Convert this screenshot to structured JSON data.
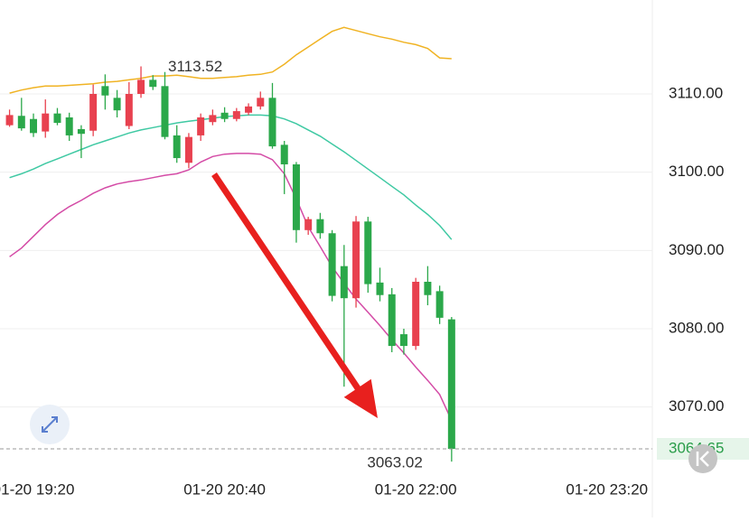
{
  "chart_data": {
    "type": "candlestick",
    "x": [
      "01-20 19:10",
      "01-20 19:15",
      "01-20 19:20",
      "01-20 19:25",
      "01-20 19:30",
      "01-20 19:35",
      "01-20 19:40",
      "01-20 19:45",
      "01-20 19:50",
      "01-20 19:55",
      "01-20 20:00",
      "01-20 20:05",
      "01-20 20:10",
      "01-20 20:15",
      "01-20 20:20",
      "01-20 20:25",
      "01-20 20:30",
      "01-20 20:35",
      "01-20 20:40",
      "01-20 20:45",
      "01-20 20:50",
      "01-20 20:55",
      "01-20 21:00",
      "01-20 21:05",
      "01-20 21:10",
      "01-20 21:15",
      "01-20 21:20",
      "01-20 21:25",
      "01-20 21:30",
      "01-20 21:35",
      "01-20 21:40",
      "01-20 21:45",
      "01-20 21:50",
      "01-20 21:55",
      "01-20 22:00",
      "01-20 22:05",
      "01-20 22:10",
      "01-20 22:15"
    ],
    "open": [
      3106,
      3107.2,
      3106.8,
      3105.2,
      3107.5,
      3107,
      3105.5,
      3105.3,
      3111,
      3109.5,
      3105.9,
      3110,
      3111.8,
      3111,
      3104.7,
      3101.2,
      3104.7,
      3106.4,
      3107.6,
      3106.8,
      3107.6,
      3108.4,
      3109.5,
      3103.5,
      3101,
      3092.6,
      3094,
      3092.2,
      3088,
      3083.9,
      3093.7,
      3085.9,
      3084.4,
      3079.3,
      3077.8,
      3086,
      3084.8,
      3081.2
    ],
    "high": [
      3108,
      3109.5,
      3107.5,
      3109.3,
      3108.2,
      3107.6,
      3106,
      3111.2,
      3112.5,
      3110.5,
      3111.5,
      3113.52,
      3112.4,
      3112.8,
      3106,
      3105,
      3107.5,
      3108,
      3108.3,
      3108.2,
      3108.8,
      3110.3,
      3111.4,
      3104,
      3101.3,
      3094.3,
      3094.8,
      3092.6,
      3090.7,
      3094.4,
      3094.3,
      3087.8,
      3085.2,
      3080,
      3086.5,
      3088,
      3085.5,
      3081.5
    ],
    "low": [
      3105.8,
      3105.3,
      3104.5,
      3104.4,
      3106,
      3104,
      3101.8,
      3104.6,
      3108,
      3107,
      3105.5,
      3109.5,
      3110.5,
      3104.2,
      3101.2,
      3100.5,
      3104,
      3106,
      3106.4,
      3106.5,
      3107.3,
      3108,
      3103,
      3097.2,
      3091,
      3092,
      3091.5,
      3083.5,
      3072.6,
      3082.7,
      3084.6,
      3083.5,
      3077,
      3076.7,
      3077.3,
      3083,
      3080.6,
      3063.02
    ],
    "close": [
      3107.3,
      3105.6,
      3105,
      3107.5,
      3106.3,
      3104.7,
      3104.9,
      3110,
      3109.8,
      3107.9,
      3110,
      3111.8,
      3110.9,
      3104.5,
      3101.8,
      3104.5,
      3107,
      3107.3,
      3106.8,
      3107.8,
      3108.4,
      3109.5,
      3103.3,
      3101,
      3092.6,
      3094,
      3092.2,
      3084.2,
      3083.9,
      3093.7,
      3085.7,
      3084.3,
      3077.8,
      3077.8,
      3086,
      3084.3,
      3081.4,
      3064.65
    ],
    "up_color": "#e8414f",
    "down_color": "#2ba84a",
    "bands": [
      {
        "color": "#f0b323",
        "values": [
          3110.1,
          3110.5,
          3110.8,
          3111,
          3111,
          3111.1,
          3111.2,
          3111.3,
          3111.5,
          3111.6,
          3111.8,
          3112,
          3112.3,
          3112.3,
          3112.4,
          3112.2,
          3112,
          3112,
          3112.1,
          3112.2,
          3112.4,
          3112.5,
          3112.8,
          3113.8,
          3115,
          3116,
          3117,
          3118,
          3118.5,
          3118.1,
          3117.7,
          3117.3,
          3117,
          3116.6,
          3116.3,
          3115.8,
          3114.6,
          3114.5
        ]
      },
      {
        "color": "#3fc9a3",
        "values": [
          3099.3,
          3099.8,
          3100.4,
          3101.1,
          3101.7,
          3102.3,
          3102.9,
          3103.5,
          3104,
          3104.5,
          3105,
          3105.4,
          3105.7,
          3106,
          3106.3,
          3106.5,
          3106.7,
          3106.9,
          3107.1,
          3107.2,
          3107.3,
          3107.3,
          3107.2,
          3106.8,
          3106.2,
          3105.4,
          3104.6,
          3103.6,
          3102.6,
          3101.5,
          3100.4,
          3099.3,
          3098.2,
          3097.1,
          3095.8,
          3094.6,
          3093.2,
          3091.4
        ]
      },
      {
        "color": "#d44ba6",
        "values": [
          3089.2,
          3090.3,
          3091.8,
          3093.3,
          3094.6,
          3095.6,
          3096.4,
          3097.3,
          3098,
          3098.5,
          3098.8,
          3099,
          3099.3,
          3099.6,
          3099.8,
          3100.3,
          3101.3,
          3102,
          3102.3,
          3102.4,
          3102.4,
          3102.3,
          3101.6,
          3099.8,
          3096.6,
          3093,
          3090.5,
          3087.9,
          3085.8,
          3083.8,
          3082.1,
          3080.4,
          3078.6,
          3076.9,
          3075.1,
          3073.4,
          3071.6,
          3068.3
        ]
      }
    ],
    "xlim": [
      "01-20 19:06",
      "01-20 23:39"
    ],
    "xticks": [
      "01-20 19:20",
      "01-20 20:40",
      "01-20 22:00",
      "01-20 23:20"
    ],
    "ylim": [
      3122,
      3062
    ],
    "yticks": [
      {
        "value": 3110,
        "label": "3110.00"
      },
      {
        "value": 3100,
        "label": "3100.00"
      },
      {
        "value": 3090,
        "label": "3090.00"
      },
      {
        "value": 3080,
        "label": "3080.00"
      },
      {
        "value": 3070,
        "label": "3070.00"
      }
    ],
    "grid": true
  }
}
